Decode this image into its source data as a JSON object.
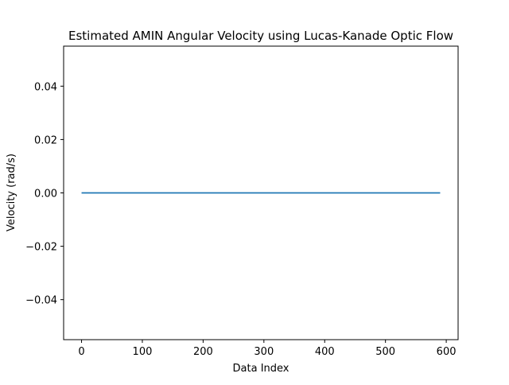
{
  "chart_data": {
    "type": "line",
    "title": "Estimated AMIN Angular Velocity using Lucas-Kanade Optic Flow",
    "xlabel": "Data Index",
    "ylabel": "Velocity (rad/s)",
    "xlim": [
      -29.5,
      619.5
    ],
    "ylim": [
      -0.055,
      0.055
    ],
    "xticks": [
      0,
      100,
      200,
      300,
      400,
      500,
      600
    ],
    "xtick_labels": [
      "0",
      "100",
      "200",
      "300",
      "400",
      "500",
      "600"
    ],
    "yticks": [
      -0.04,
      -0.02,
      0.0,
      0.02,
      0.04
    ],
    "ytick_labels": [
      "−0.04",
      "−0.02",
      "0.00",
      "0.02",
      "0.04"
    ],
    "grid": false,
    "series": [
      {
        "color": "#1f77b4",
        "x": [
          0,
          590
        ],
        "y": [
          0,
          0
        ]
      }
    ]
  }
}
